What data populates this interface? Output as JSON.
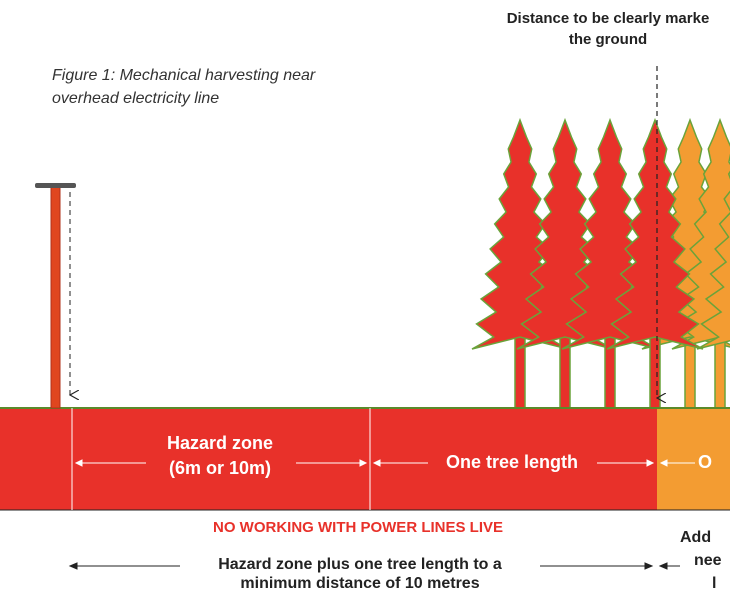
{
  "top_label": {
    "lines": [
      "Distance to be clearly marke",
      "the ground"
    ]
  },
  "caption": {
    "lines": [
      "Figure 1: Mechanical harvesting near",
      "overhead electricity line"
    ]
  },
  "zones": {
    "hazard": [
      "Hazard zone",
      "(6m or 10m)"
    ],
    "tree_length": "One tree length",
    "outer": "O"
  },
  "warning": "NO WORKING WITH POWER LINES LIVE",
  "distance_note": [
    "Hazard zone plus one tree length to a",
    "minimum distance of 10 metres"
  ],
  "right_note": [
    "Add",
    "nee",
    "l"
  ]
}
